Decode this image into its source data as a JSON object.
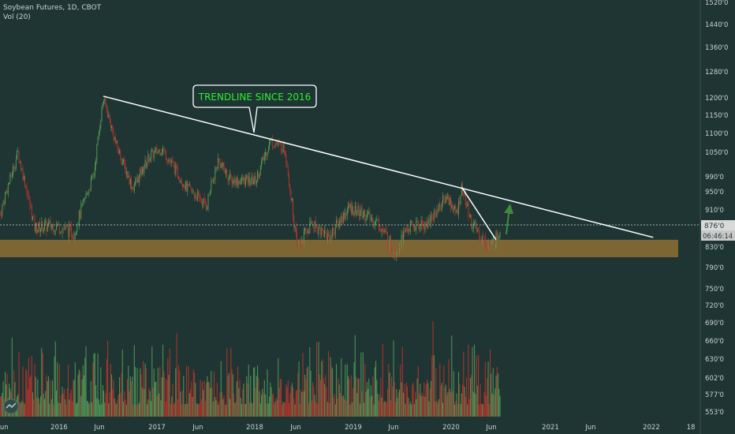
{
  "header": {
    "symbol_line": "Soybean Futures, 1D, CBOT",
    "volume_line": "Vol (20)"
  },
  "annotation": {
    "text": "TRENDLINE SINCE 2016"
  },
  "price_label": {
    "last": "876'0",
    "countdown": "06:46:14"
  },
  "colors": {
    "background": "#1e3533",
    "up": "#57a05a",
    "down": "#c2342c",
    "trendline": "#ffffff",
    "support_zone": "#7d6534",
    "annotation_text": "#2ef02e",
    "arrow": "#3f8a3f"
  },
  "chart_data": {
    "type": "candlestick",
    "y_axis_ticks": [
      "1520'0",
      "1440'0",
      "1360'0",
      "1280'0",
      "1200'0",
      "1150'0",
      "1100'0",
      "1050'0",
      "990'0",
      "950'0",
      "910'0",
      "876'0",
      "830'0",
      "790'0",
      "750'0",
      "720'0",
      "690'0",
      "660'0",
      "630'0",
      "602'0",
      "577'0",
      "553'0"
    ],
    "x_axis_ticks": [
      "Jun",
      "2016",
      "Jun",
      "2017",
      "Jun",
      "2018",
      "Jun",
      "2019",
      "Jun",
      "2020",
      "Jun",
      "2021",
      "Jun",
      "2022",
      "18"
    ],
    "price_path": [
      [
        2015.4,
        900
      ],
      [
        2015.58,
        1050
      ],
      [
        2015.75,
        870
      ],
      [
        2015.95,
        875
      ],
      [
        2016.15,
        860
      ],
      [
        2016.35,
        990
      ],
      [
        2016.45,
        1200
      ],
      [
        2016.58,
        1070
      ],
      [
        2016.75,
        960
      ],
      [
        2016.92,
        1040
      ],
      [
        2017.05,
        1060
      ],
      [
        2017.3,
        960
      ],
      [
        2017.5,
        920
      ],
      [
        2017.62,
        1030
      ],
      [
        2017.75,
        980
      ],
      [
        2018.0,
        980
      ],
      [
        2018.15,
        1080
      ],
      [
        2018.3,
        1060
      ],
      [
        2018.42,
        830
      ],
      [
        2018.58,
        880
      ],
      [
        2018.75,
        850
      ],
      [
        2018.95,
        915
      ],
      [
        2019.1,
        900
      ],
      [
        2019.25,
        880
      ],
      [
        2019.42,
        820
      ],
      [
        2019.55,
        870
      ],
      [
        2019.75,
        880
      ],
      [
        2019.95,
        940
      ],
      [
        2020.05,
        900
      ],
      [
        2020.1,
        960
      ],
      [
        2020.2,
        880
      ],
      [
        2020.3,
        850
      ],
      [
        2020.4,
        830
      ],
      [
        2020.5,
        870
      ]
    ],
    "trendlines": [
      {
        "name": "long",
        "from": [
          2016.45,
          1205
        ],
        "to": [
          2022.05,
          850
        ]
      },
      {
        "name": "short",
        "from": [
          2020.1,
          962
        ],
        "to": [
          2020.45,
          845
        ]
      }
    ],
    "support_zone": [
      810,
      845
    ],
    "last_price": 876,
    "grid": false
  }
}
